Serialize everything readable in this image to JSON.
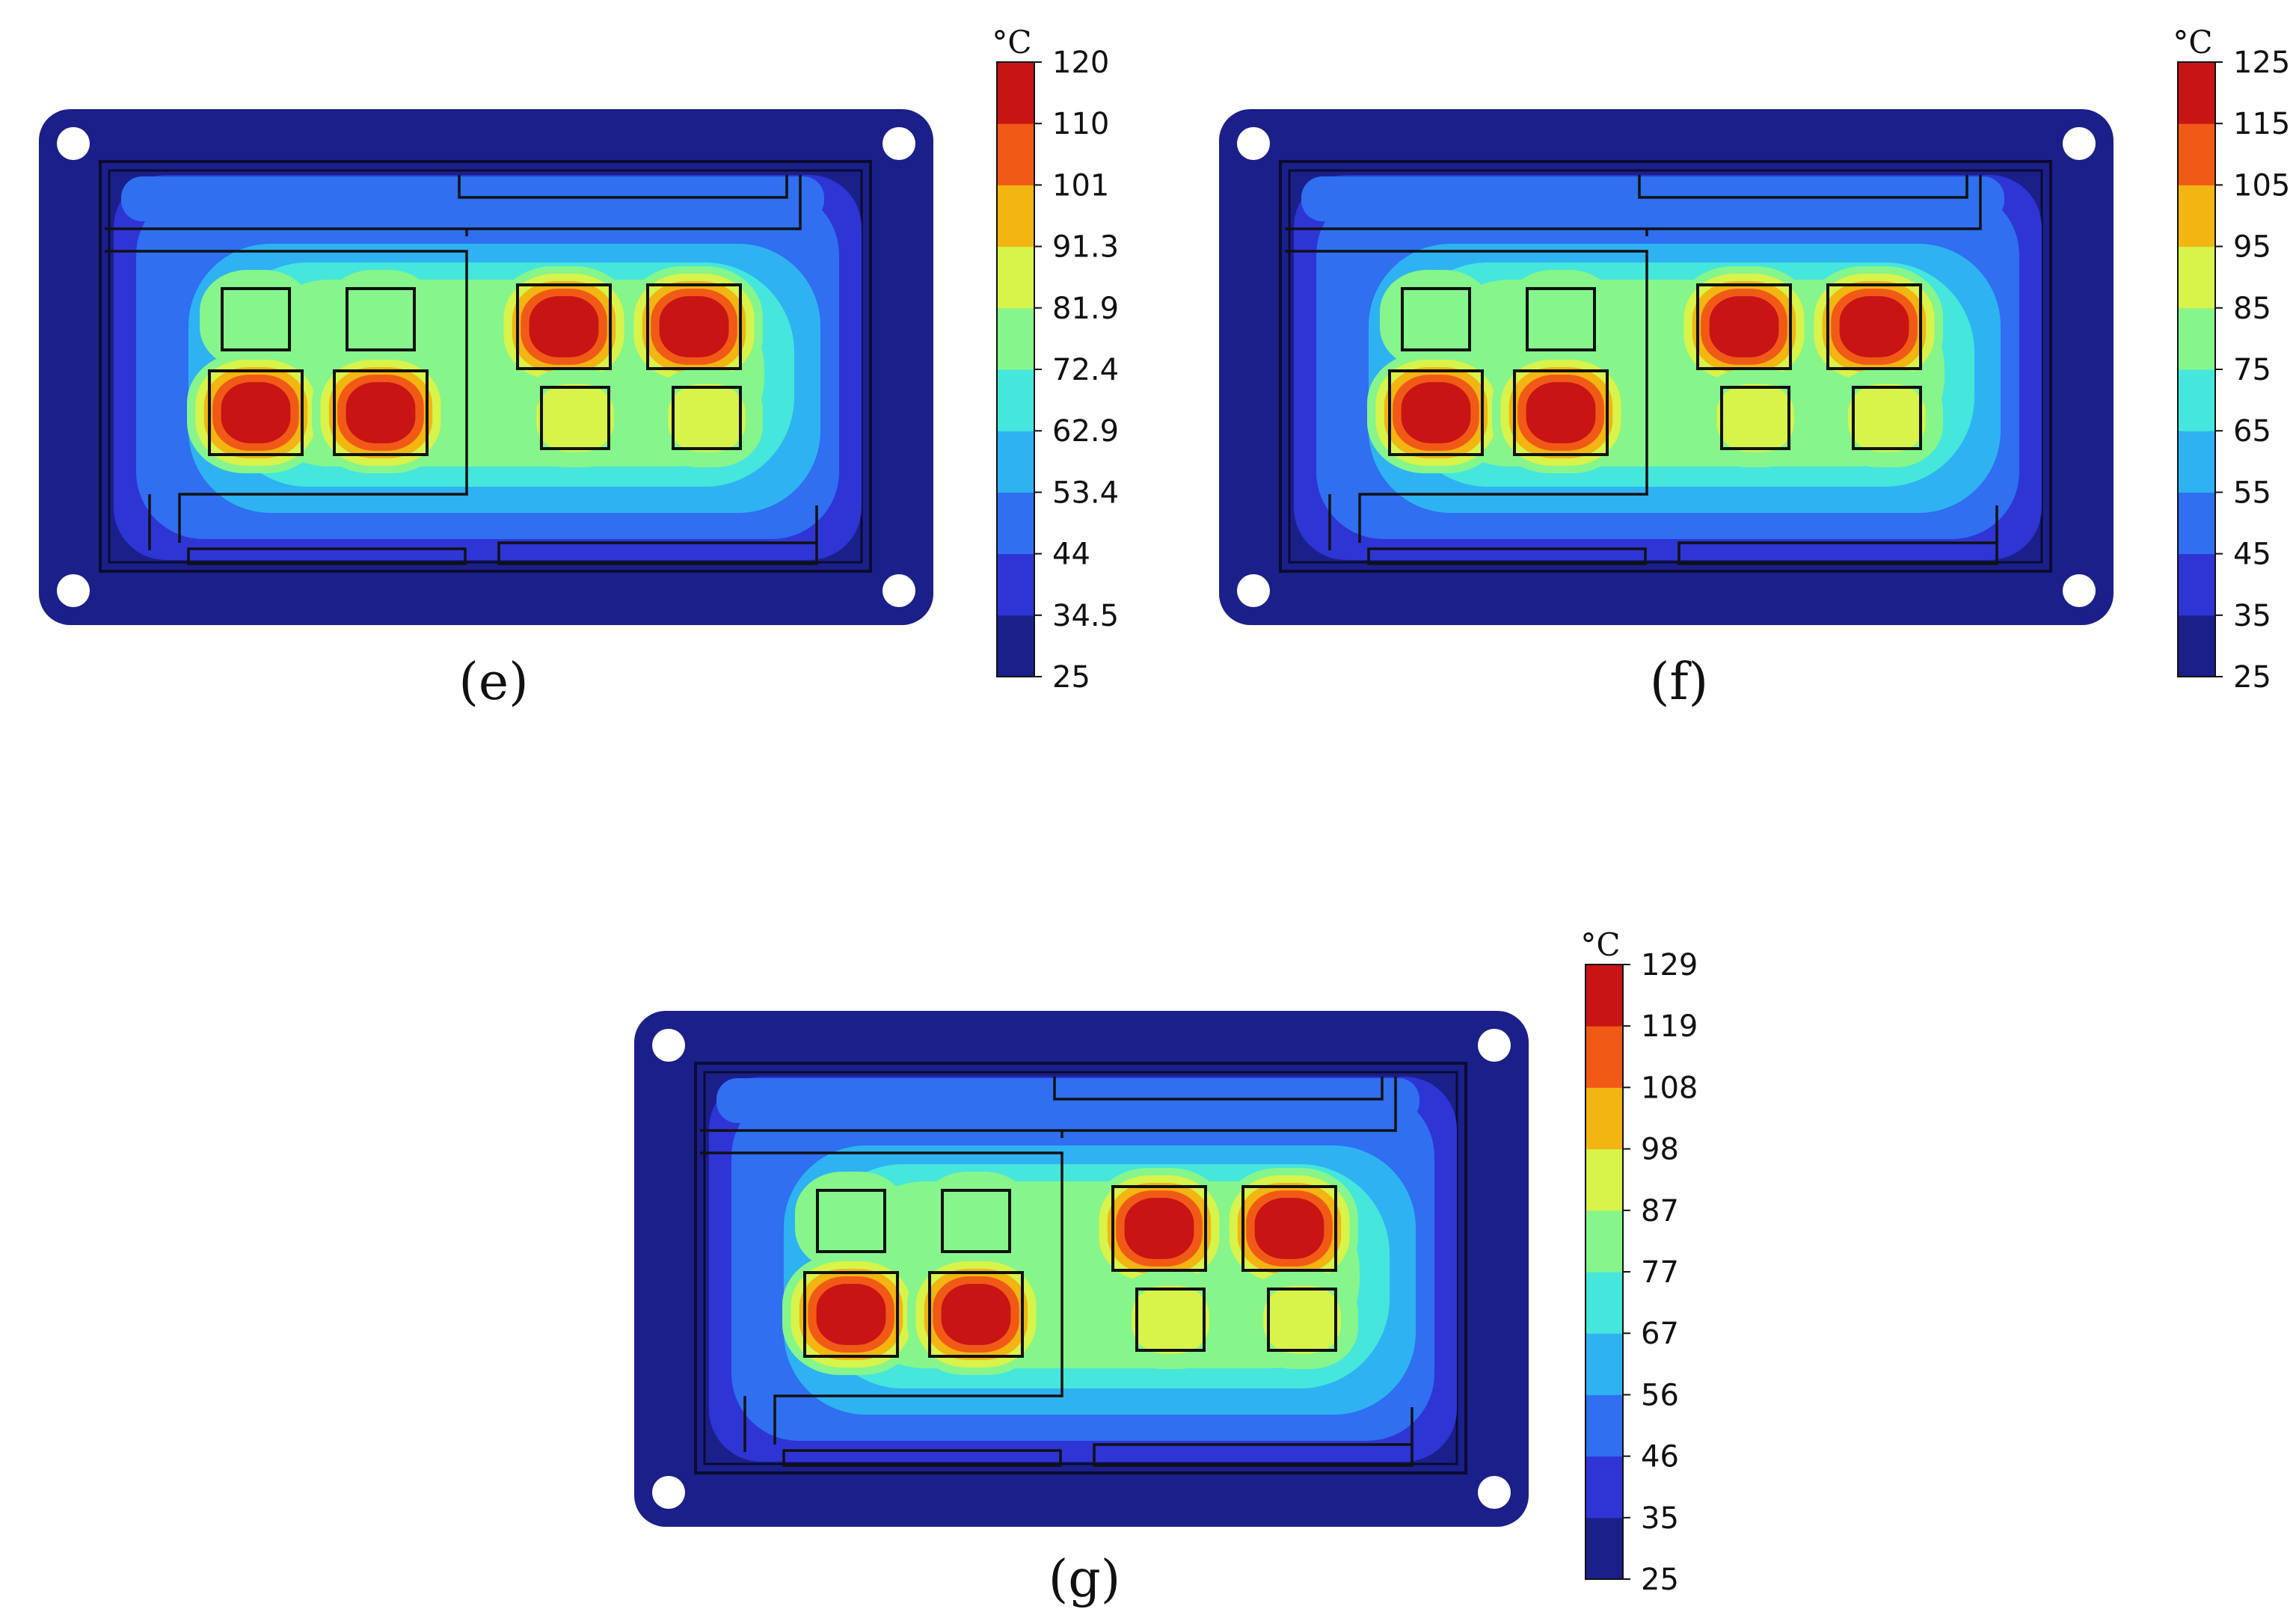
{
  "colormap": [
    "#1b1f8a",
    "#2e35d4",
    "#2f6ff0",
    "#2fb2f2",
    "#45e6dc",
    "#86f58c",
    "#d8f34a",
    "#f2b511",
    "#f05a16",
    "#c81414"
  ],
  "panels": [
    {
      "id": "e",
      "caption": "(e)",
      "unit": "°C",
      "ticks": [
        "120",
        "110",
        "101",
        "91.3",
        "81.9",
        "72.4",
        "62.9",
        "53.4",
        "44",
        "34.5",
        "25"
      ]
    },
    {
      "id": "f",
      "caption": "(f)",
      "unit": "°C",
      "ticks": [
        "125",
        "115",
        "105",
        "95",
        "85",
        "75",
        "65",
        "55",
        "45",
        "35",
        "25"
      ]
    },
    {
      "id": "g",
      "caption": "(g)",
      "unit": "°C",
      "ticks": [
        "129",
        "119",
        "108",
        "98",
        "87",
        "77",
        "67",
        "56",
        "46",
        "35",
        "25"
      ]
    }
  ]
}
